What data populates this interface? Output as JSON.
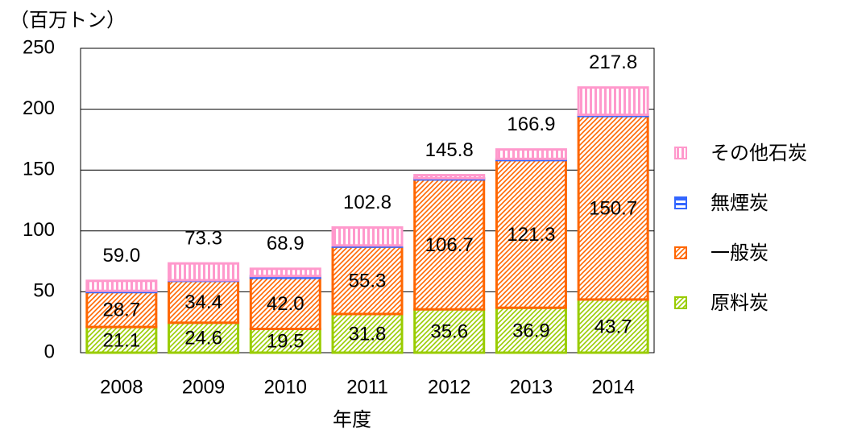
{
  "chart_data": {
    "type": "stacked_bar",
    "unit_label": "（百万トン）",
    "x_label": "年度",
    "categories": [
      "2008",
      "2009",
      "2010",
      "2011",
      "2012",
      "2013",
      "2014"
    ],
    "series": [
      {
        "name": "原料炭",
        "color": "#99cc00",
        "values": [
          21.1,
          24.6,
          19.5,
          31.8,
          35.6,
          36.9,
          43.7
        ],
        "value_labels": [
          "21.1",
          "24.6",
          "19.5",
          "31.8",
          "35.6",
          "36.9",
          "43.7"
        ]
      },
      {
        "name": "一般炭",
        "color": "#ff6600",
        "values": [
          28.7,
          34.4,
          42.0,
          55.3,
          106.7,
          121.3,
          150.7
        ],
        "value_labels": [
          "28.7",
          "34.4",
          "42.0",
          "55.3",
          "106.7",
          "121.3",
          "150.7"
        ]
      },
      {
        "name": "無煙炭",
        "color": "#3366ff",
        "values": [
          1.0,
          0.5,
          1.5,
          1.0,
          1.0,
          1.0,
          1.0
        ]
      },
      {
        "name": "その他石炭",
        "color": "#ff99cc",
        "values": [
          8.2,
          13.8,
          5.9,
          14.7,
          2.5,
          7.7,
          22.4
        ]
      }
    ],
    "totals": {
      "values": [
        59.0,
        73.3,
        68.9,
        102.8,
        145.8,
        166.9,
        217.8
      ],
      "value_labels": [
        "59.0",
        "73.3",
        "68.9",
        "102.8",
        "145.8",
        "166.9",
        "217.8"
      ]
    },
    "ylim": [
      0,
      250
    ],
    "yticks": [
      0,
      50,
      100,
      150,
      200,
      250
    ],
    "grid": true,
    "legend": "right"
  }
}
